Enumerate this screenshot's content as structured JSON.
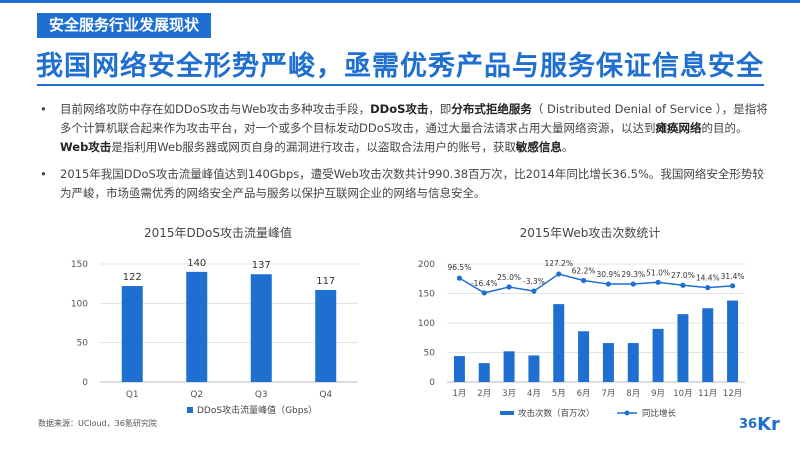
{
  "section_tag": "安全服务行业发展现状",
  "headline": "我国网络安全形势严峻，亟需优秀产品与服务保证信息安全",
  "bullets": [
    {
      "dot": "•",
      "p1": "目前网络攻防中存在如DDoS攻击与Web攻击多种攻击手段，",
      "b1": "DDoS攻击",
      "p2": "，即",
      "b2": "分布式拒绝服务",
      "p3": "（ Distributed Denial of Service ），是指将多个计算机联合起来作为攻击平台，对一个或多个目标发动DDoS攻击，通过大量合法请求占用大量网络资源，以达到",
      "b3": "瘫痪网络",
      "p4": "的目的。",
      "b4": "Web攻击",
      "p5": "是指利用Web服务器或网页自身的漏洞进行攻击，以盗取合法用户的账号，获取",
      "b5": "敏感信息",
      "p6": "。"
    },
    {
      "dot": "•",
      "text": "2015年我国DDoS攻击流量峰值达到140Gbps，遭受Web攻击次数共计990.38百万次，比2014年同比增长36.5%。我国网络安全形势较为严峻，市场亟需优秀的网络安全产品与服务以保护互联网企业的网络与信息安全。"
    }
  ],
  "chart_data": [
    {
      "type": "bar",
      "title": "2015年DDoS攻击流量峰值",
      "categories": [
        "Q1",
        "Q2",
        "Q3",
        "Q4"
      ],
      "values": [
        122,
        140,
        137,
        117
      ],
      "value_labels": [
        "122",
        "140",
        "137",
        "117"
      ],
      "y_ticks": [
        "0",
        "50",
        "100",
        "150"
      ],
      "ylim": [
        0,
        150
      ],
      "legend": "DDoS攻击流量峰值（Gbps）",
      "color": "#1f6fd1"
    },
    {
      "type": "bar+line",
      "title": "2015年Web攻击次数统计",
      "categories": [
        "1月",
        "2月",
        "3月",
        "4月",
        "5月",
        "6月",
        "7月",
        "8月",
        "9月",
        "10月",
        "11月",
        "12月"
      ],
      "bars": [
        44,
        32,
        52,
        45,
        132,
        86,
        66,
        66,
        90,
        115,
        125,
        138
      ],
      "bar_ylim": [
        0,
        200
      ],
      "y_ticks": [
        "0",
        "50",
        "100",
        "150",
        "200"
      ],
      "growth": [
        96.5,
        -16.4,
        25.0,
        -3.3,
        127.2,
        62.2,
        30.9,
        29.3,
        51.0,
        27.0,
        14.4,
        31.4
      ],
      "growth_labels": [
        "96.5%",
        "-16.4%",
        "25.0%",
        "-3.3%",
        "127.2%",
        "62.2%",
        "30.9%",
        "29.3%",
        "51.0%",
        "27.0%",
        "14.4%",
        "31.4%"
      ],
      "line_plot_values": [
        176,
        151,
        161,
        154,
        183,
        172,
        166,
        166,
        169,
        164,
        160,
        163
      ],
      "legend_bar": "攻击次数（百万次）",
      "legend_line": "同比增长",
      "color": "#1f6fd1"
    }
  ],
  "source": "数据来源：UCloud，36氪研究院",
  "logo": {
    "num": "36",
    "kr": "Kr"
  },
  "colors": {
    "accent": "#1f6fd1"
  }
}
